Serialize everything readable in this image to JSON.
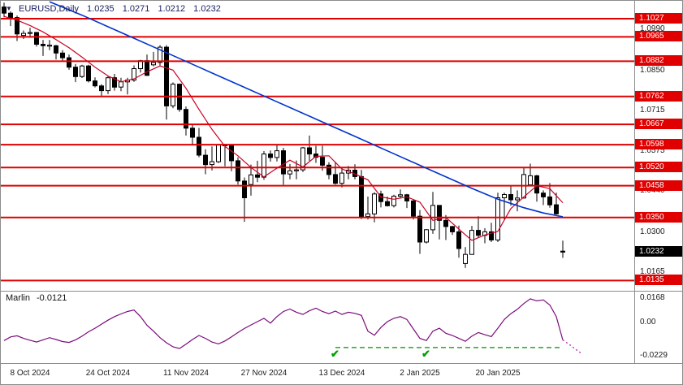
{
  "header": {
    "dropdown_icon": "▼",
    "symbol": "EURUSD,Daily",
    "open": "1.0235",
    "high": "1.0271",
    "low": "1.0212",
    "close": "1.0232"
  },
  "colors": {
    "background": "#ffffff",
    "border": "#8c8c8c",
    "header_text": "#1b2161",
    "level_red": "#e00000",
    "badge_red_bg": "#e00000",
    "current_badge_bg": "#000000",
    "axis_text": "#1a1a1a",
    "candle_up_fill": "#ffffff",
    "candle_down_fill": "#000000",
    "candle_outline": "#000000",
    "blue_ma": "#0033cc",
    "red_ma": "#cc0022",
    "marlin_line": "#7b0c7b",
    "projection_line": "#bb33bb",
    "baseline_green": "#009000",
    "checkmark_green": "#00a000"
  },
  "chart_data": {
    "type": "candlestick",
    "title": "EURUSD Daily",
    "ylim": [
      1.01,
      1.1088
    ],
    "price_axis_ticks": [
      1.099,
      1.085,
      1.0715,
      1.0575,
      1.044,
      1.03,
      1.0165
    ],
    "level_lines": [
      1.1027,
      1.0965,
      1.0882,
      1.0762,
      1.0667,
      1.0598,
      1.052,
      1.0458,
      1.035,
      1.0135
    ],
    "current_price": 1.0232,
    "x_ticks": [
      {
        "label": "8 Oct 2024",
        "index": 4
      },
      {
        "label": "24 Oct 2024",
        "index": 16
      },
      {
        "label": "11 Nov 2024",
        "index": 28
      },
      {
        "label": "27 Nov 2024",
        "index": 40
      },
      {
        "label": "13 Dec 2024",
        "index": 52
      },
      {
        "label": "2 Jan 2025",
        "index": 64
      },
      {
        "label": "20 Jan 2025",
        "index": 76
      }
    ],
    "candle_columns": [
      "date",
      "open",
      "high",
      "low",
      "close"
    ],
    "candles": [
      [
        "2 Oct",
        1.1067,
        1.1082,
        1.1032,
        1.1046
      ],
      [
        "3 Oct",
        1.1046,
        1.1052,
        1.1002,
        1.1031
      ],
      [
        "4 Oct",
        1.1031,
        1.1038,
        1.0951,
        1.0975
      ],
      [
        "7 Oct",
        1.097,
        1.0987,
        1.0958,
        1.0977
      ],
      [
        "8 Oct",
        1.0977,
        1.0996,
        1.0962,
        1.098
      ],
      [
        "9 Oct",
        1.098,
        1.0982,
        1.0932,
        1.094
      ],
      [
        "10 Oct",
        1.094,
        1.0955,
        1.09,
        1.0935
      ],
      [
        "11 Oct",
        1.0935,
        1.0955,
        1.092,
        1.0937
      ],
      [
        "14 Oct",
        1.0935,
        1.0938,
        1.0888,
        1.091
      ],
      [
        "15 Oct",
        1.091,
        1.092,
        1.0882,
        1.0894
      ],
      [
        "16 Oct",
        1.0894,
        1.0905,
        1.0853,
        1.0862
      ],
      [
        "17 Oct",
        1.0862,
        1.0873,
        1.0811,
        1.083
      ],
      [
        "18 Oct",
        1.083,
        1.087,
        1.0825,
        1.0866
      ],
      [
        "21 Oct",
        1.0866,
        1.087,
        1.081,
        1.0815
      ],
      [
        "22 Oct",
        1.0815,
        1.0827,
        1.0793,
        1.0798
      ],
      [
        "23 Oct",
        1.0798,
        1.0804,
        1.076,
        1.0782
      ],
      [
        "24 Oct",
        1.0782,
        1.0832,
        1.077,
        1.0826
      ],
      [
        "25 Oct",
        1.0826,
        1.0839,
        1.0782,
        1.0794
      ],
      [
        "28 Oct",
        1.0794,
        1.0826,
        1.078,
        1.0812
      ],
      [
        "29 Oct",
        1.0812,
        1.0826,
        1.0769,
        1.0818
      ],
      [
        "30 Oct",
        1.0818,
        1.0868,
        1.0812,
        1.0857
      ],
      [
        "31 Oct",
        1.0857,
        1.0887,
        1.0844,
        1.0884
      ],
      [
        "1 Nov",
        1.0884,
        1.0905,
        1.0832,
        1.0834
      ],
      [
        "4 Nov",
        1.087,
        1.0914,
        1.0865,
        1.0878
      ],
      [
        "5 Nov",
        1.0878,
        1.0937,
        1.0868,
        1.093
      ],
      [
        "6 Nov",
        1.093,
        1.0937,
        1.0683,
        1.073
      ],
      [
        "7 Nov",
        1.073,
        1.081,
        1.0722,
        1.0804
      ],
      [
        "8 Nov",
        1.0804,
        1.0806,
        1.071,
        1.0718
      ],
      [
        "11 Nov",
        1.0718,
        1.0728,
        1.0629,
        1.0654
      ],
      [
        "12 Nov",
        1.0654,
        1.0665,
        1.0595,
        1.0623
      ],
      [
        "13 Nov",
        1.0623,
        1.0655,
        1.0555,
        1.0562
      ],
      [
        "14 Nov",
        1.0562,
        1.0582,
        1.0497,
        1.053
      ],
      [
        "15 Nov",
        1.053,
        1.0592,
        1.051,
        1.054
      ],
      [
        "18 Nov",
        1.054,
        1.0601,
        1.0535,
        1.0598
      ],
      [
        "19 Nov",
        1.0598,
        1.0601,
        1.0524,
        1.0594
      ],
      [
        "20 Nov",
        1.0594,
        1.0596,
        1.0507,
        1.0543
      ],
      [
        "21 Nov",
        1.0543,
        1.0555,
        1.0462,
        1.0474
      ],
      [
        "22 Nov",
        1.0474,
        1.0486,
        1.0335,
        1.0417
      ],
      [
        "25 Nov",
        1.0462,
        1.053,
        1.0424,
        1.0495
      ],
      [
        "26 Nov",
        1.0495,
        1.0543,
        1.047,
        1.0487
      ],
      [
        "27 Nov",
        1.0487,
        1.0576,
        1.0478,
        1.0566
      ],
      [
        "28 Nov",
        1.0566,
        1.0578,
        1.054,
        1.0554
      ],
      [
        "29 Nov",
        1.0554,
        1.0598,
        1.0541,
        1.0577
      ],
      [
        "2 Dec",
        1.0577,
        1.0587,
        1.0461,
        1.0498
      ],
      [
        "3 Dec",
        1.0498,
        1.0532,
        1.048,
        1.0509
      ],
      [
        "4 Dec",
        1.0509,
        1.0544,
        1.048,
        1.0512
      ],
      [
        "5 Dec",
        1.0512,
        1.059,
        1.0505,
        1.0587
      ],
      [
        "6 Dec",
        1.0587,
        1.0629,
        1.0543,
        1.0566
      ],
      [
        "9 Dec",
        1.0566,
        1.0594,
        1.0536,
        1.0555
      ],
      [
        "10 Dec",
        1.0555,
        1.0594,
        1.0509,
        1.0528
      ],
      [
        "11 Dec",
        1.0528,
        1.0538,
        1.048,
        1.0496
      ],
      [
        "12 Dec",
        1.0496,
        1.054,
        1.0462,
        1.0466
      ],
      [
        "13 Dec",
        1.0466,
        1.052,
        1.0452,
        1.0501
      ],
      [
        "16 Dec",
        1.0501,
        1.0525,
        1.048,
        1.0511
      ],
      [
        "17 Dec",
        1.0511,
        1.0531,
        1.048,
        1.0489
      ],
      [
        "18 Dec",
        1.0489,
        1.0512,
        1.0344,
        1.0353
      ],
      [
        "19 Dec",
        1.0353,
        1.0421,
        1.0343,
        1.0362
      ],
      [
        "20 Dec",
        1.0362,
        1.0436,
        1.0333,
        1.043
      ],
      [
        "23 Dec",
        1.043,
        1.0441,
        1.0384,
        1.0404
      ],
      [
        "24 Dec",
        1.0404,
        1.0421,
        1.0387,
        1.039
      ],
      [
        "26 Dec",
        1.039,
        1.0427,
        1.0384,
        1.0422
      ],
      [
        "27 Dec",
        1.0422,
        1.0445,
        1.0415,
        1.0427
      ],
      [
        "30 Dec",
        1.0427,
        1.043,
        1.0382,
        1.0406
      ],
      [
        "31 Dec",
        1.0406,
        1.0412,
        1.0343,
        1.0354
      ],
      [
        "2 Jan",
        1.0354,
        1.0375,
        1.0226,
        1.0266
      ],
      [
        "3 Jan",
        1.0266,
        1.031,
        1.0261,
        1.0308
      ],
      [
        "6 Jan",
        1.0308,
        1.0437,
        1.0294,
        1.0391
      ],
      [
        "7 Jan",
        1.0391,
        1.0392,
        1.0275,
        1.034
      ],
      [
        "8 Jan",
        1.034,
        1.0358,
        1.0273,
        1.0319
      ],
      [
        "9 Jan",
        1.0319,
        1.0321,
        1.029,
        1.0301
      ],
      [
        "10 Jan",
        1.0301,
        1.0322,
        1.0213,
        1.0244
      ],
      [
        "13 Jan",
        1.0193,
        1.0249,
        1.0178,
        1.0224
      ],
      [
        "14 Jan",
        1.0224,
        1.0321,
        1.0224,
        1.0306
      ],
      [
        "15 Jan",
        1.0306,
        1.0354,
        1.028,
        1.0289
      ],
      [
        "16 Jan",
        1.0289,
        1.0313,
        1.0262,
        1.0301
      ],
      [
        "17 Jan",
        1.0301,
        1.0332,
        1.0266,
        1.0273
      ],
      [
        "20 Jan",
        1.0273,
        1.0434,
        1.0266,
        1.0417
      ],
      [
        "21 Jan",
        1.0417,
        1.0434,
        1.0343,
        1.0428
      ],
      [
        "22 Jan",
        1.0428,
        1.0457,
        1.039,
        1.041
      ],
      [
        "23 Jan",
        1.041,
        1.0442,
        1.0371,
        1.0416
      ],
      [
        "24 Jan",
        1.0416,
        1.0521,
        1.0414,
        1.0496
      ],
      [
        "27 Jan",
        1.0461,
        1.0533,
        1.0458,
        1.0492
      ],
      [
        "28 Jan",
        1.0492,
        1.0495,
        1.0404,
        1.0433
      ],
      [
        "29 Jan",
        1.0433,
        1.0442,
        1.0392,
        1.042
      ],
      [
        "30 Jan",
        1.042,
        1.0467,
        1.0383,
        1.0393
      ],
      [
        "31 Jan",
        1.0393,
        1.0434,
        1.036,
        1.0362
      ],
      [
        "3 Feb",
        1.0235,
        1.0271,
        1.0212,
        1.0232
      ]
    ],
    "blue_ma": [
      [
        7,
        1.1085
      ],
      [
        12,
        1.1039
      ],
      [
        18,
        1.098
      ],
      [
        24,
        1.0921
      ],
      [
        30,
        1.0862
      ],
      [
        36,
        1.0803
      ],
      [
        42,
        1.0744
      ],
      [
        48,
        1.0685
      ],
      [
        54,
        1.0626
      ],
      [
        60,
        1.0567
      ],
      [
        66,
        1.0508
      ],
      [
        72,
        1.0449
      ],
      [
        76,
        1.0412
      ],
      [
        80,
        1.0383
      ],
      [
        83,
        1.0365
      ],
      [
        86,
        1.0352
      ]
    ],
    "red_ma": [
      [
        0,
        1.1035
      ],
      [
        2,
        1.1022
      ],
      [
        4,
        1.1004
      ],
      [
        6,
        1.0982
      ],
      [
        8,
        1.0956
      ],
      [
        10,
        1.0928
      ],
      [
        12,
        1.0896
      ],
      [
        14,
        1.0862
      ],
      [
        16,
        1.0832
      ],
      [
        18,
        1.0812
      ],
      [
        20,
        1.0822
      ],
      [
        22,
        1.0846
      ],
      [
        24,
        1.0866
      ],
      [
        26,
        1.0852
      ],
      [
        28,
        1.079
      ],
      [
        30,
        1.0718
      ],
      [
        32,
        1.065
      ],
      [
        34,
        1.0592
      ],
      [
        36,
        1.056
      ],
      [
        38,
        1.052
      ],
      [
        40,
        1.0488
      ],
      [
        42,
        1.0518
      ],
      [
        44,
        1.0545
      ],
      [
        46,
        1.0522
      ],
      [
        48,
        1.0558
      ],
      [
        50,
        1.056
      ],
      [
        52,
        1.0515
      ],
      [
        54,
        1.0498
      ],
      [
        56,
        1.0478
      ],
      [
        58,
        1.042
      ],
      [
        60,
        1.0412
      ],
      [
        62,
        1.042
      ],
      [
        64,
        1.0402
      ],
      [
        66,
        1.034
      ],
      [
        68,
        1.035
      ],
      [
        70,
        1.031
      ],
      [
        72,
        1.0272
      ],
      [
        74,
        1.029
      ],
      [
        76,
        1.0302
      ],
      [
        78,
        1.038
      ],
      [
        80,
        1.042
      ],
      [
        82,
        1.0458
      ],
      [
        84,
        1.0448
      ],
      [
        86,
        1.04
      ]
    ],
    "indicator": {
      "name": "Marlin",
      "value_label": "-0.0121",
      "tick_labels": [
        "0.0168",
        "0.00",
        "-0.0229"
      ],
      "ylim": [
        -0.028,
        0.0212
      ],
      "values": [
        -0.0125,
        -0.01,
        -0.0092,
        -0.011,
        -0.0123,
        -0.0135,
        -0.012,
        -0.0105,
        -0.0118,
        -0.0132,
        -0.0138,
        -0.012,
        -0.0095,
        -0.0065,
        -0.004,
        -0.0012,
        0.0015,
        0.004,
        0.0058,
        0.0075,
        0.0085,
        0.004,
        -0.002,
        -0.006,
        -0.0105,
        -0.014,
        -0.0168,
        -0.018,
        -0.015,
        -0.0118,
        -0.009,
        -0.011,
        -0.0135,
        -0.0148,
        -0.0128,
        -0.01,
        -0.007,
        -0.0042,
        -0.0018,
        0.0005,
        0.0028,
        -0.0005,
        0.004,
        0.0075,
        0.0092,
        0.007,
        0.0055,
        0.008,
        0.0098,
        0.0075,
        0.006,
        0.0078,
        0.0055,
        0.007,
        0.0062,
        0.0048,
        -0.006,
        -0.0088,
        -0.0035,
        0.0005,
        0.0028,
        0.004,
        0.002,
        -0.0045,
        -0.011,
        -0.0125,
        -0.006,
        -0.004,
        -0.0075,
        -0.009,
        -0.011,
        -0.013,
        -0.0095,
        -0.007,
        -0.0085,
        -0.0098,
        -0.004,
        0.002,
        0.006,
        0.009,
        0.013,
        0.0162,
        0.0148,
        0.0155,
        0.012,
        0.004,
        -0.0121
      ],
      "projection": [
        -0.0152,
        -0.0186,
        -0.0218
      ],
      "baseline": {
        "value": -0.0173,
        "from_index": 51,
        "to_index": 86
      },
      "checkmark_indices": [
        51,
        65
      ],
      "checkmark_glyph": "✔"
    }
  }
}
